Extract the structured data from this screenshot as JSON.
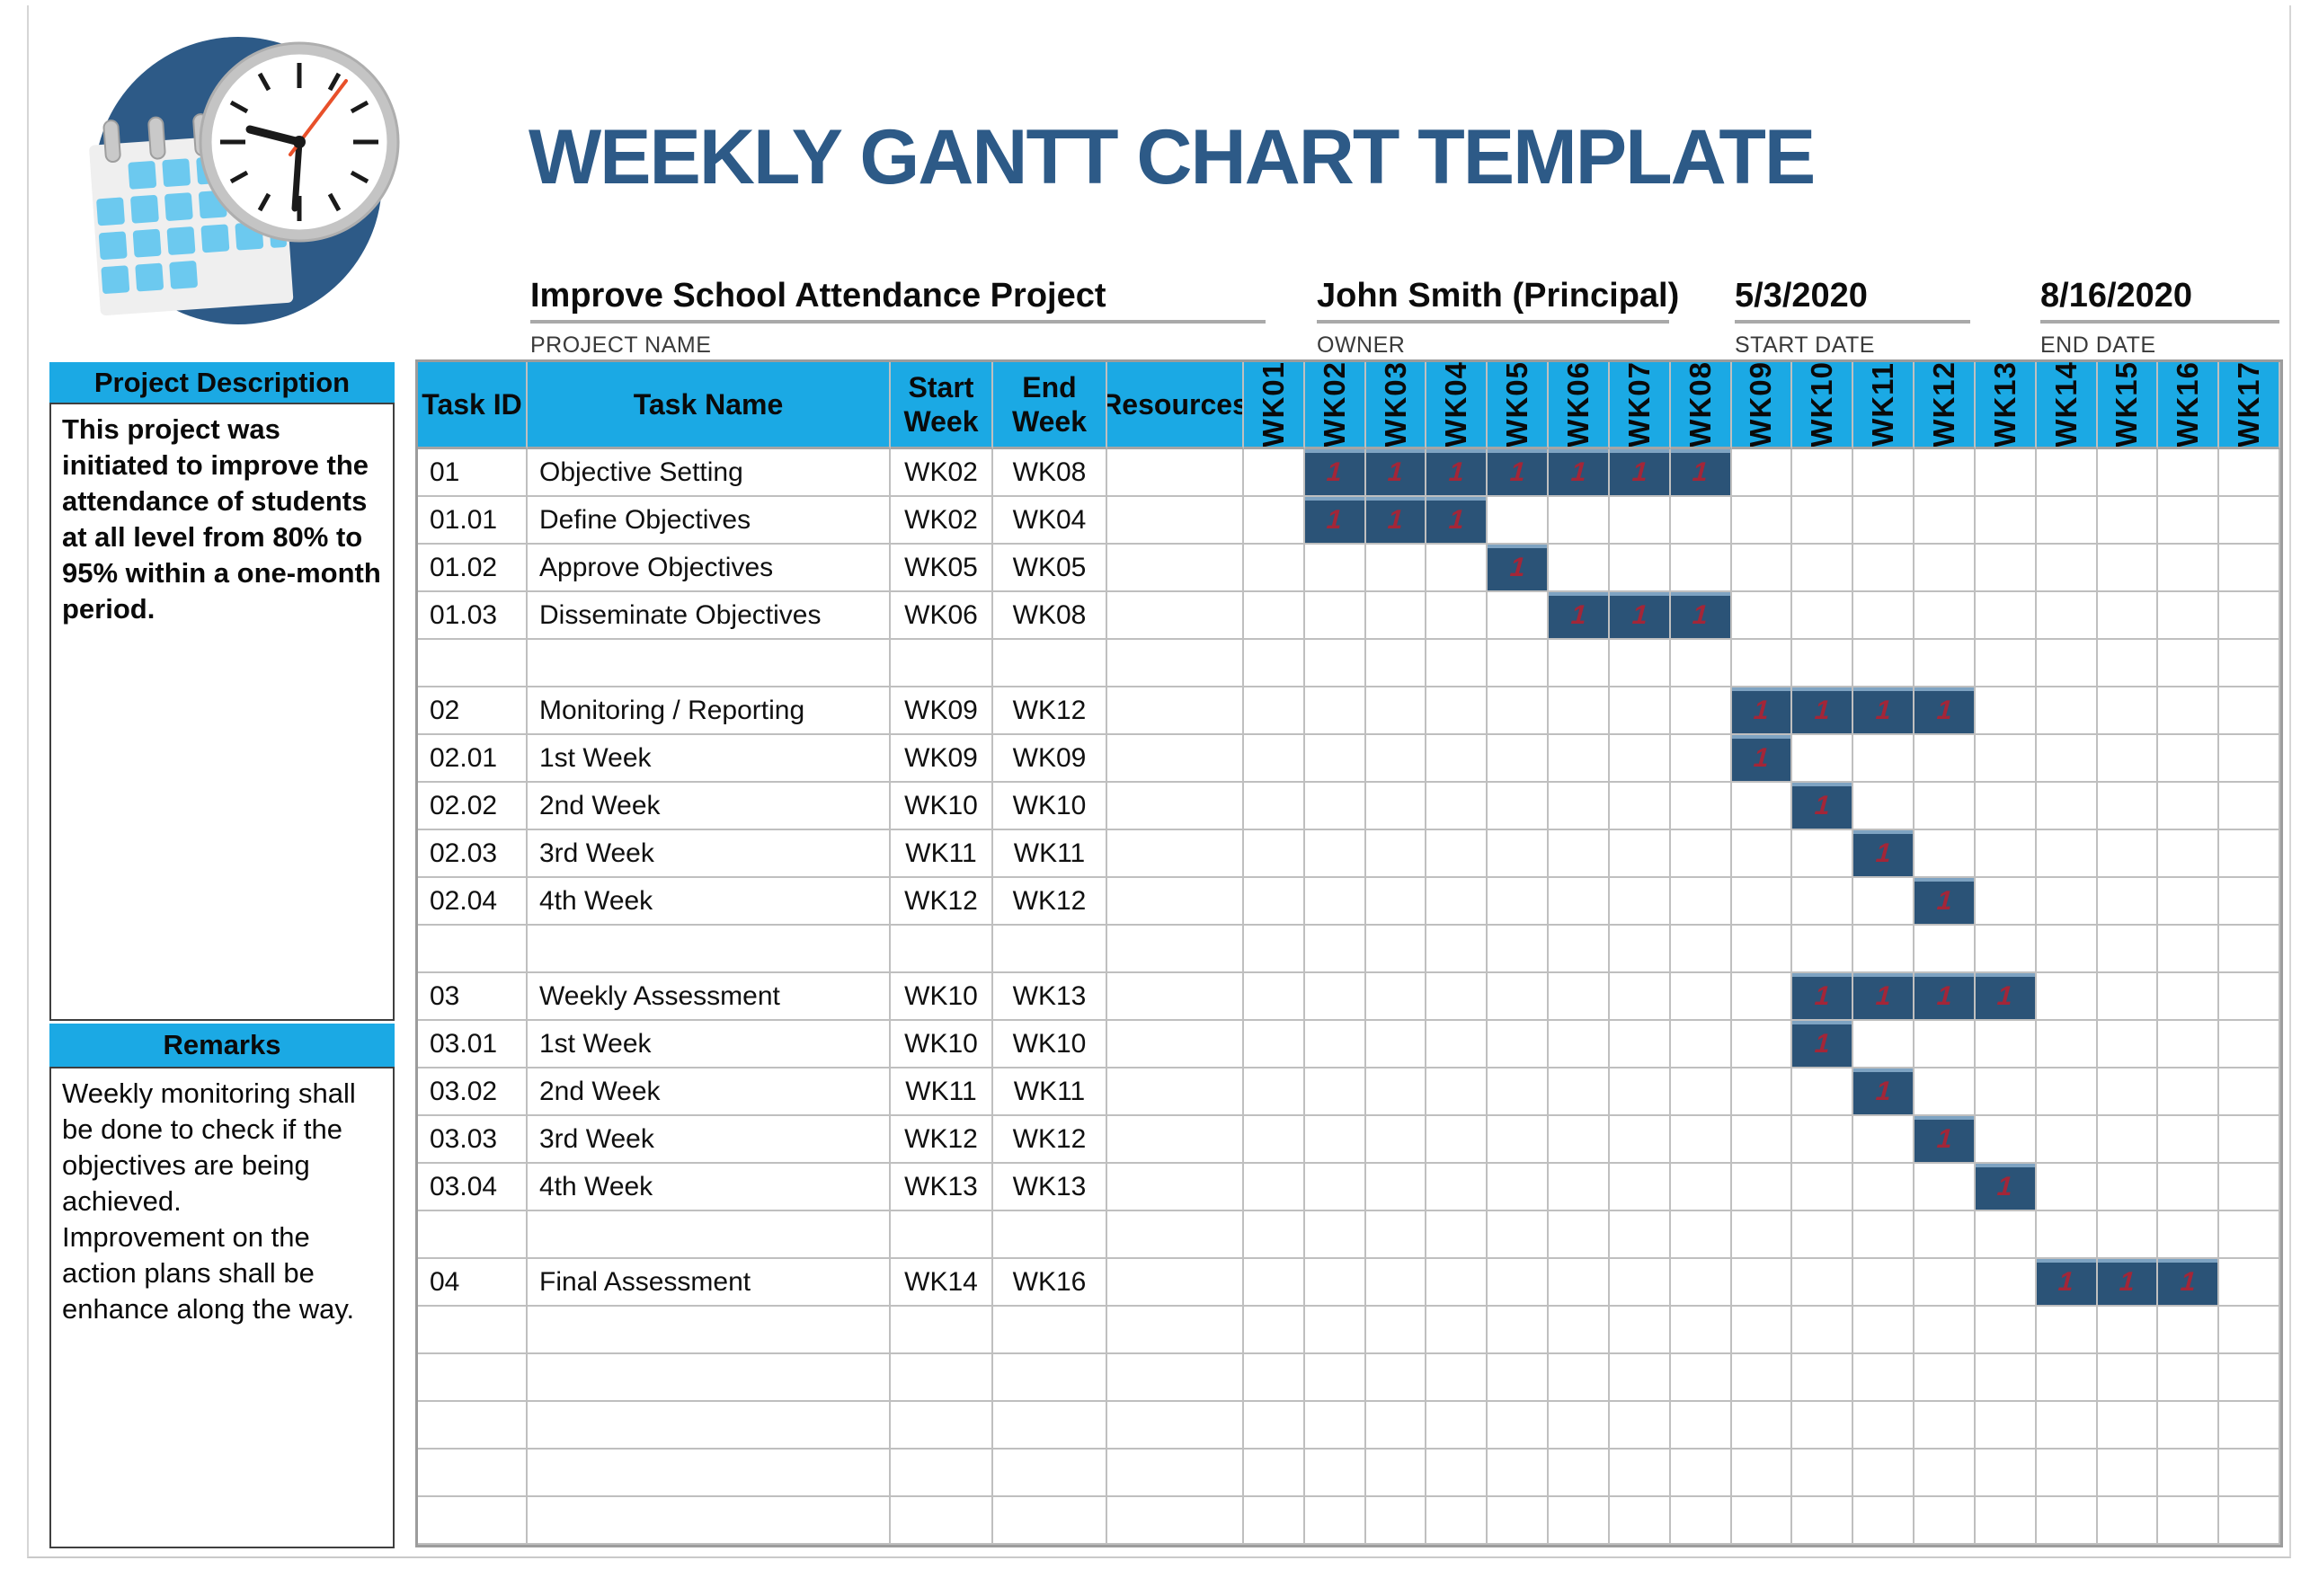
{
  "title": "WEEKLY GANTT CHART TEMPLATE",
  "logo": {
    "name": "calendar-clock-logo"
  },
  "project_info": {
    "name": {
      "value": "Improve School Attendance Project",
      "label": "PROJECT NAME"
    },
    "owner": {
      "value": "John Smith (Principal)",
      "label": "OWNER"
    },
    "start_date": {
      "value": "5/3/2020",
      "label": "START DATE"
    },
    "end_date": {
      "value": "8/16/2020",
      "label": "END DATE"
    }
  },
  "sidebar": {
    "description": {
      "header": "Project Description",
      "text": "This project was initiated to improve the attendance of students at all level from 80% to 95% within a one-month period."
    },
    "remarks": {
      "header": "Remarks",
      "text": "Weekly monitoring shall be done to check if the objectives are being achieved.\nImprovement on the action plans shall be enhance along the way."
    }
  },
  "gantt": {
    "columns": {
      "task_id": "Task ID",
      "task_name": "Task Name",
      "start_week": "Start\nWeek",
      "end_week": "End\nWeek",
      "resources": "Resources"
    },
    "weeks": [
      "WK01",
      "WK02",
      "WK03",
      "WK04",
      "WK05",
      "WK06",
      "WK07",
      "WK08",
      "WK09",
      "WK10",
      "WK11",
      "WK12",
      "WK13",
      "WK14",
      "WK15",
      "WK16",
      "WK17"
    ],
    "bar_cell_value": "1",
    "rows": [
      {
        "task_id": "01",
        "task_name": "Objective Setting",
        "start_week": "WK02",
        "end_week": "WK08",
        "resources": "",
        "bar_start": 2,
        "bar_end": 8
      },
      {
        "task_id": "01.01",
        "task_name": "Define Objectives",
        "start_week": "WK02",
        "end_week": "WK04",
        "resources": "",
        "bar_start": 2,
        "bar_end": 4
      },
      {
        "task_id": "01.02",
        "task_name": "Approve Objectives",
        "start_week": "WK05",
        "end_week": "WK05",
        "resources": "",
        "bar_start": 5,
        "bar_end": 5
      },
      {
        "task_id": "01.03",
        "task_name": "Disseminate Objectives",
        "start_week": "WK06",
        "end_week": "WK08",
        "resources": "",
        "bar_start": 6,
        "bar_end": 8
      },
      {
        "task_id": "",
        "task_name": "",
        "start_week": "",
        "end_week": "",
        "resources": "",
        "bar_start": 0,
        "bar_end": 0
      },
      {
        "task_id": "02",
        "task_name": "Monitoring / Reporting",
        "start_week": "WK09",
        "end_week": "WK12",
        "resources": "",
        "bar_start": 9,
        "bar_end": 12
      },
      {
        "task_id": "02.01",
        "task_name": "1st Week",
        "start_week": "WK09",
        "end_week": "WK09",
        "resources": "",
        "bar_start": 9,
        "bar_end": 9
      },
      {
        "task_id": "02.02",
        "task_name": "2nd Week",
        "start_week": "WK10",
        "end_week": "WK10",
        "resources": "",
        "bar_start": 10,
        "bar_end": 10
      },
      {
        "task_id": "02.03",
        "task_name": "3rd Week",
        "start_week": "WK11",
        "end_week": "WK11",
        "resources": "",
        "bar_start": 11,
        "bar_end": 11
      },
      {
        "task_id": "02.04",
        "task_name": "4th Week",
        "start_week": "WK12",
        "end_week": "WK12",
        "resources": "",
        "bar_start": 12,
        "bar_end": 12
      },
      {
        "task_id": "",
        "task_name": "",
        "start_week": "",
        "end_week": "",
        "resources": "",
        "bar_start": 0,
        "bar_end": 0
      },
      {
        "task_id": "03",
        "task_name": "Weekly Assessment",
        "start_week": "WK10",
        "end_week": "WK13",
        "resources": "",
        "bar_start": 10,
        "bar_end": 13
      },
      {
        "task_id": "03.01",
        "task_name": "1st Week",
        "start_week": "WK10",
        "end_week": "WK10",
        "resources": "",
        "bar_start": 10,
        "bar_end": 10
      },
      {
        "task_id": "03.02",
        "task_name": "2nd Week",
        "start_week": "WK11",
        "end_week": "WK11",
        "resources": "",
        "bar_start": 11,
        "bar_end": 11
      },
      {
        "task_id": "03.03",
        "task_name": "3rd Week",
        "start_week": "WK12",
        "end_week": "WK12",
        "resources": "",
        "bar_start": 12,
        "bar_end": 12
      },
      {
        "task_id": "03.04",
        "task_name": "4th Week",
        "start_week": "WK13",
        "end_week": "WK13",
        "resources": "",
        "bar_start": 13,
        "bar_end": 13
      },
      {
        "task_id": "",
        "task_name": "",
        "start_week": "",
        "end_week": "",
        "resources": "",
        "bar_start": 0,
        "bar_end": 0
      },
      {
        "task_id": "04",
        "task_name": "Final Assessment",
        "start_week": "WK14",
        "end_week": "WK16",
        "resources": "",
        "bar_start": 14,
        "bar_end": 16
      },
      {
        "task_id": "",
        "task_name": "",
        "start_week": "",
        "end_week": "",
        "resources": "",
        "bar_start": 0,
        "bar_end": 0
      },
      {
        "task_id": "",
        "task_name": "",
        "start_week": "",
        "end_week": "",
        "resources": "",
        "bar_start": 0,
        "bar_end": 0
      },
      {
        "task_id": "",
        "task_name": "",
        "start_week": "",
        "end_week": "",
        "resources": "",
        "bar_start": 0,
        "bar_end": 0
      },
      {
        "task_id": "",
        "task_name": "",
        "start_week": "",
        "end_week": "",
        "resources": "",
        "bar_start": 0,
        "bar_end": 0
      },
      {
        "task_id": "",
        "task_name": "",
        "start_week": "",
        "end_week": "",
        "resources": "",
        "bar_start": 0,
        "bar_end": 0
      }
    ]
  },
  "colors": {
    "accent_cyan": "#1ba9e4",
    "bar_navy": "#2b5377",
    "bar_value_red": "#a32638",
    "title_blue": "#2d5a87",
    "grid_gray": "#bfbfbf"
  }
}
